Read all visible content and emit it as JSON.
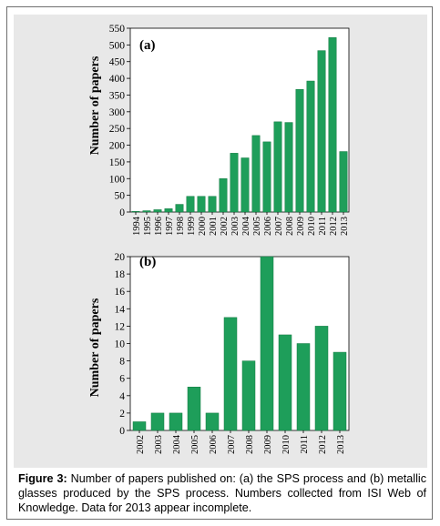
{
  "caption": {
    "label": "Figure 3:",
    "text": "Number of papers published on: (a) the SPS process and (b) metallic glasses produced by the SPS process. Numbers collected from ISI Web of Knowledge. Data for 2013 appear incomplete."
  },
  "colors": {
    "bar": "#1e9e5a",
    "bar_edge": "#157a43",
    "panel_bg": "#e8e8e8",
    "plot_bg": "#ffffff"
  },
  "chart_data": [
    {
      "type": "bar",
      "panel_label": "(a)",
      "title": "",
      "xlabel": "",
      "ylabel": "Number of papers",
      "ylim": [
        0,
        550
      ],
      "yticks": [
        0,
        50,
        100,
        150,
        200,
        250,
        300,
        350,
        400,
        450,
        500,
        550
      ],
      "grid": false,
      "categories": [
        "1994",
        "1995",
        "1996",
        "1997",
        "1998",
        "1999",
        "2000",
        "2001",
        "2002",
        "2003",
        "2004",
        "2005",
        "2006",
        "2007",
        "2008",
        "2009",
        "2010",
        "2011",
        "2012",
        "2013"
      ],
      "values": [
        2,
        4,
        7,
        10,
        23,
        47,
        47,
        47,
        100,
        176,
        162,
        229,
        210,
        270,
        268,
        367,
        392,
        483,
        522,
        181
      ]
    },
    {
      "type": "bar",
      "panel_label": "(b)",
      "title": "",
      "xlabel": "",
      "ylabel": "Number of papers",
      "ylim": [
        0,
        20
      ],
      "yticks": [
        0,
        2,
        4,
        6,
        8,
        10,
        12,
        14,
        16,
        18,
        20
      ],
      "grid": false,
      "categories": [
        "2002",
        "2003",
        "2004",
        "2005",
        "2006",
        "2007",
        "2008",
        "2009",
        "2010",
        "2011",
        "2012",
        "2013"
      ],
      "values": [
        1,
        2,
        2,
        5,
        2,
        13,
        8,
        20,
        11,
        10,
        12,
        9
      ]
    }
  ]
}
